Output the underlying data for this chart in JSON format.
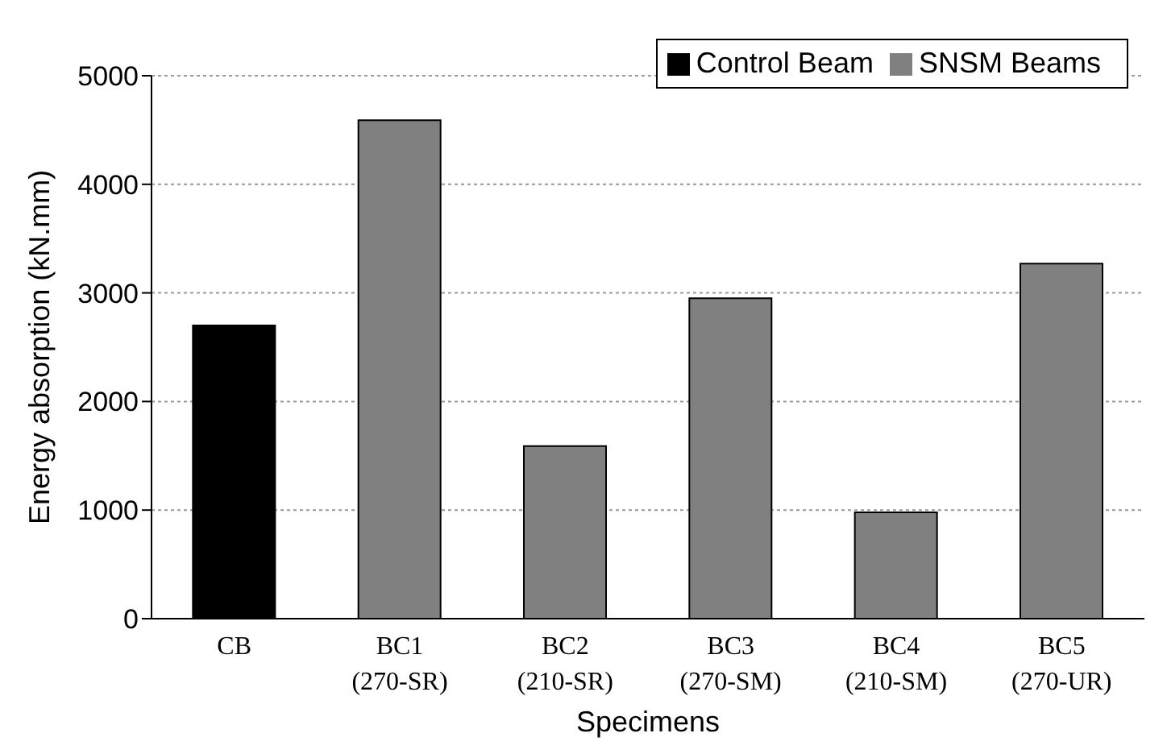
{
  "chart_data": {
    "type": "bar",
    "xlabel": "Specimens",
    "ylabel": "Energy absorption (kN.mm)",
    "categories": [
      "CB",
      "BC1\n(270-SR)",
      "BC2\n(210-SR)",
      "BC3\n(270-SM)",
      "BC4\n(210-SM)",
      "BC5\n(270-UR)"
    ],
    "series": [
      {
        "name": "Control Beam",
        "color": "#000000",
        "values": [
          2700,
          null,
          null,
          null,
          null,
          null
        ]
      },
      {
        "name": "SNSM Beams",
        "color": "#808080",
        "values": [
          null,
          4590,
          1590,
          2950,
          980,
          3270
        ]
      }
    ],
    "stacked": true,
    "ylim": [
      0,
      5000
    ],
    "yticks": [
      0,
      1000,
      2000,
      3000,
      4000,
      5000
    ],
    "grid": "y",
    "legend": "top right"
  }
}
